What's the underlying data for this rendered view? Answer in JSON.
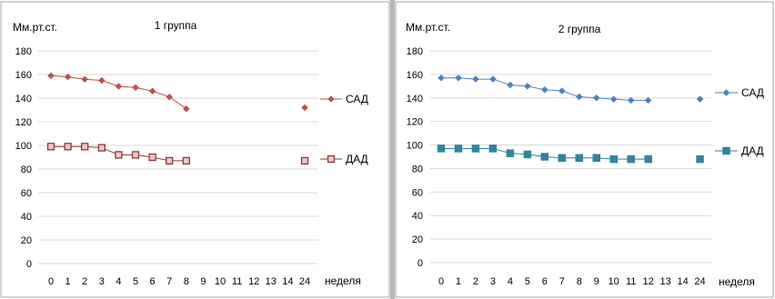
{
  "chart_data": [
    {
      "type": "line",
      "title": "1 группа",
      "ylabel": "Мм.рт.ст.",
      "xlabel": "неделя",
      "categories": [
        "0",
        "1",
        "2",
        "3",
        "4",
        "5",
        "6",
        "7",
        "8",
        "9",
        "10",
        "11",
        "12",
        "13",
        "14",
        "24"
      ],
      "ylim": [
        0,
        180
      ],
      "yticks": [
        0,
        20,
        40,
        60,
        80,
        100,
        120,
        140,
        160,
        180
      ],
      "grid": "horizontal",
      "legend": "right",
      "series": [
        {
          "name": "САД",
          "marker": "diamond",
          "color": "#c0504d",
          "values": [
            159,
            158,
            156,
            155,
            150,
            149,
            146,
            141,
            131,
            null,
            null,
            null,
            null,
            null,
            null,
            132
          ]
        },
        {
          "name": "ДАД",
          "marker": "square-open",
          "color": "#8b3a3a",
          "values": [
            99,
            99,
            99,
            98,
            92,
            92,
            90,
            87,
            87,
            null,
            null,
            null,
            null,
            null,
            null,
            87
          ]
        }
      ]
    },
    {
      "type": "line",
      "title": "2 группа",
      "ylabel": "Мм.рт.ст.",
      "xlabel": "неделя",
      "categories": [
        "0",
        "1",
        "2",
        "3",
        "4",
        "5",
        "6",
        "7",
        "8",
        "9",
        "10",
        "11",
        "12",
        "13",
        "14",
        "24"
      ],
      "ylim": [
        0,
        180
      ],
      "yticks": [
        0,
        20,
        40,
        60,
        80,
        100,
        120,
        140,
        160,
        180
      ],
      "grid": "horizontal",
      "legend": "right",
      "series": [
        {
          "name": "САД",
          "marker": "diamond",
          "color": "#4f81bd",
          "values": [
            157,
            157,
            156,
            156,
            151,
            150,
            147,
            146,
            141,
            140,
            139,
            138,
            138,
            null,
            null,
            139
          ]
        },
        {
          "name": "ДАД",
          "marker": "square",
          "color": "#31849b",
          "values": [
            97,
            97,
            97,
            97,
            93,
            92,
            90,
            89,
            89,
            89,
            88,
            88,
            88,
            null,
            null,
            88
          ]
        }
      ]
    }
  ]
}
